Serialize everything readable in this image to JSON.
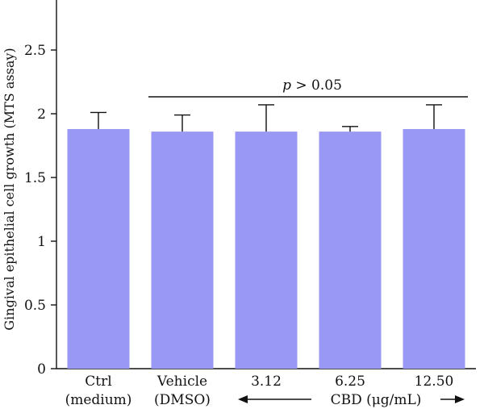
{
  "chart_data": {
    "type": "bar",
    "categories": [
      {
        "line1": "Ctrl",
        "line2": "(medium)"
      },
      {
        "line1": "Vehicle",
        "line2": "(DMSO)"
      },
      {
        "line1": "3.12",
        "line2": ""
      },
      {
        "line1": "6.25",
        "line2": ""
      },
      {
        "line1": "12.50",
        "line2": ""
      }
    ],
    "values": [
      1.88,
      1.86,
      1.86,
      1.86,
      1.88
    ],
    "error_upper": [
      2.01,
      1.99,
      2.07,
      1.9,
      2.07
    ],
    "ylabel": "Gingival epithelial cell growth (MTS assay)",
    "xlabel": "",
    "ylim": [
      0,
      2.8
    ],
    "yticks": [
      0,
      0.5,
      1,
      1.5,
      2,
      2.5
    ],
    "ytick_labels": [
      "0",
      "0.5",
      "1",
      "1.5",
      "2",
      "2.5"
    ],
    "bar_color": "#9999f5",
    "annotation": {
      "p_symbol": "p",
      "text": " > 0.05"
    },
    "cbd_label": "CBD (μg/mL)"
  }
}
